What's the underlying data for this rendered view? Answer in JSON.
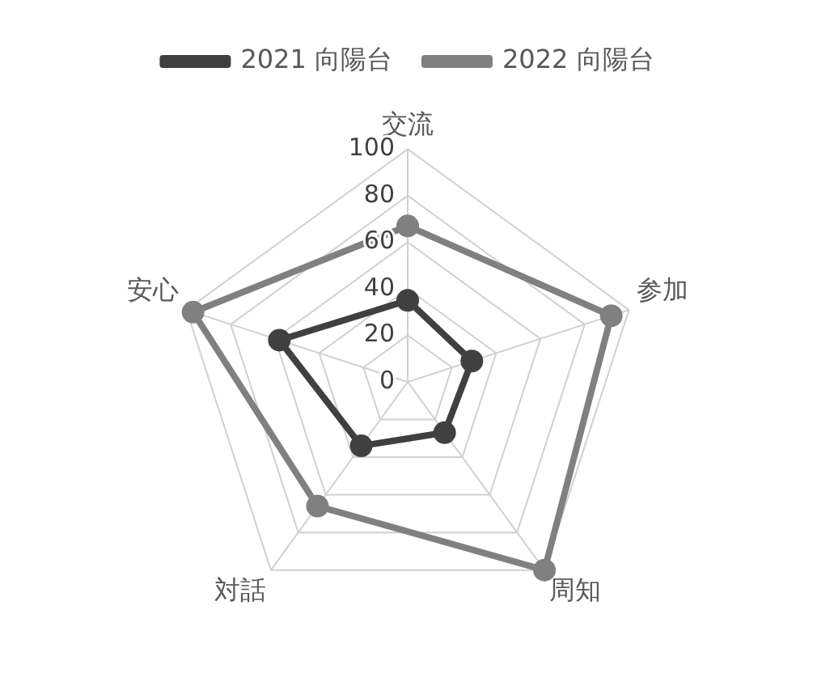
{
  "chart_data": {
    "type": "radar",
    "categories": [
      "交流",
      "参加",
      "周知",
      "対話",
      "安心"
    ],
    "series": [
      {
        "name": "2021 向陽台",
        "color": "#404040",
        "values": [
          35,
          29,
          27,
          34,
          58
        ]
      },
      {
        "name": "2022 向陽台",
        "color": "#808080",
        "values": [
          67,
          92,
          100,
          66,
          97
        ]
      }
    ],
    "ylim": [
      0,
      100
    ],
    "yticks": [
      0,
      20,
      40,
      60,
      80,
      100
    ],
    "grid": true,
    "legend": "top",
    "marker": "circle",
    "line_style": "solid"
  }
}
